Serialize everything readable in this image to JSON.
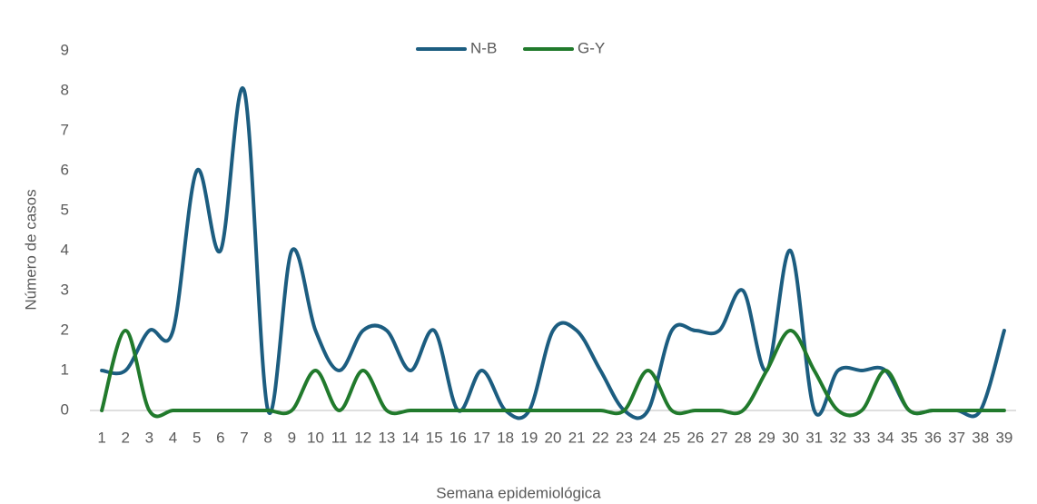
{
  "chart_data": {
    "type": "line",
    "x_label": "Semana epidemiológica",
    "y_label": "Número de casos",
    "categories": [
      "1",
      "2",
      "3",
      "4",
      "5",
      "6",
      "7",
      "8",
      "9",
      "10",
      "11",
      "12",
      "13",
      "14",
      "15",
      "16",
      "17",
      "18",
      "19",
      "20",
      "21",
      "22",
      "23",
      "24",
      "25",
      "26",
      "27",
      "28",
      "29",
      "30",
      "31",
      "32",
      "33",
      "34",
      "35",
      "36",
      "37",
      "38",
      "39"
    ],
    "series": [
      {
        "name": "N-B",
        "color": "#1c5d80",
        "values": [
          1,
          1,
          2,
          2,
          6,
          4,
          8,
          0,
          4,
          2,
          1,
          2,
          2,
          1,
          2,
          0,
          1,
          0,
          0,
          2,
          2,
          1,
          0,
          0,
          2,
          2,
          2,
          3,
          1,
          4,
          0,
          1,
          1,
          1,
          0,
          0,
          0,
          0,
          2
        ]
      },
      {
        "name": "G-Y",
        "color": "#217a2c",
        "values": [
          0,
          2,
          0,
          0,
          0,
          0,
          0,
          0,
          0,
          1,
          0,
          1,
          0,
          0,
          0,
          0,
          0,
          0,
          0,
          0,
          0,
          0,
          0,
          1,
          0,
          0,
          0,
          0,
          1,
          2,
          1,
          0,
          0,
          1,
          0,
          0,
          0,
          0,
          0
        ]
      }
    ],
    "ylim": [
      0,
      9
    ],
    "yticks": [
      0,
      1,
      2,
      3,
      4,
      5,
      6,
      7,
      8,
      9
    ],
    "grid": false,
    "smooth": true,
    "legend": "top"
  }
}
